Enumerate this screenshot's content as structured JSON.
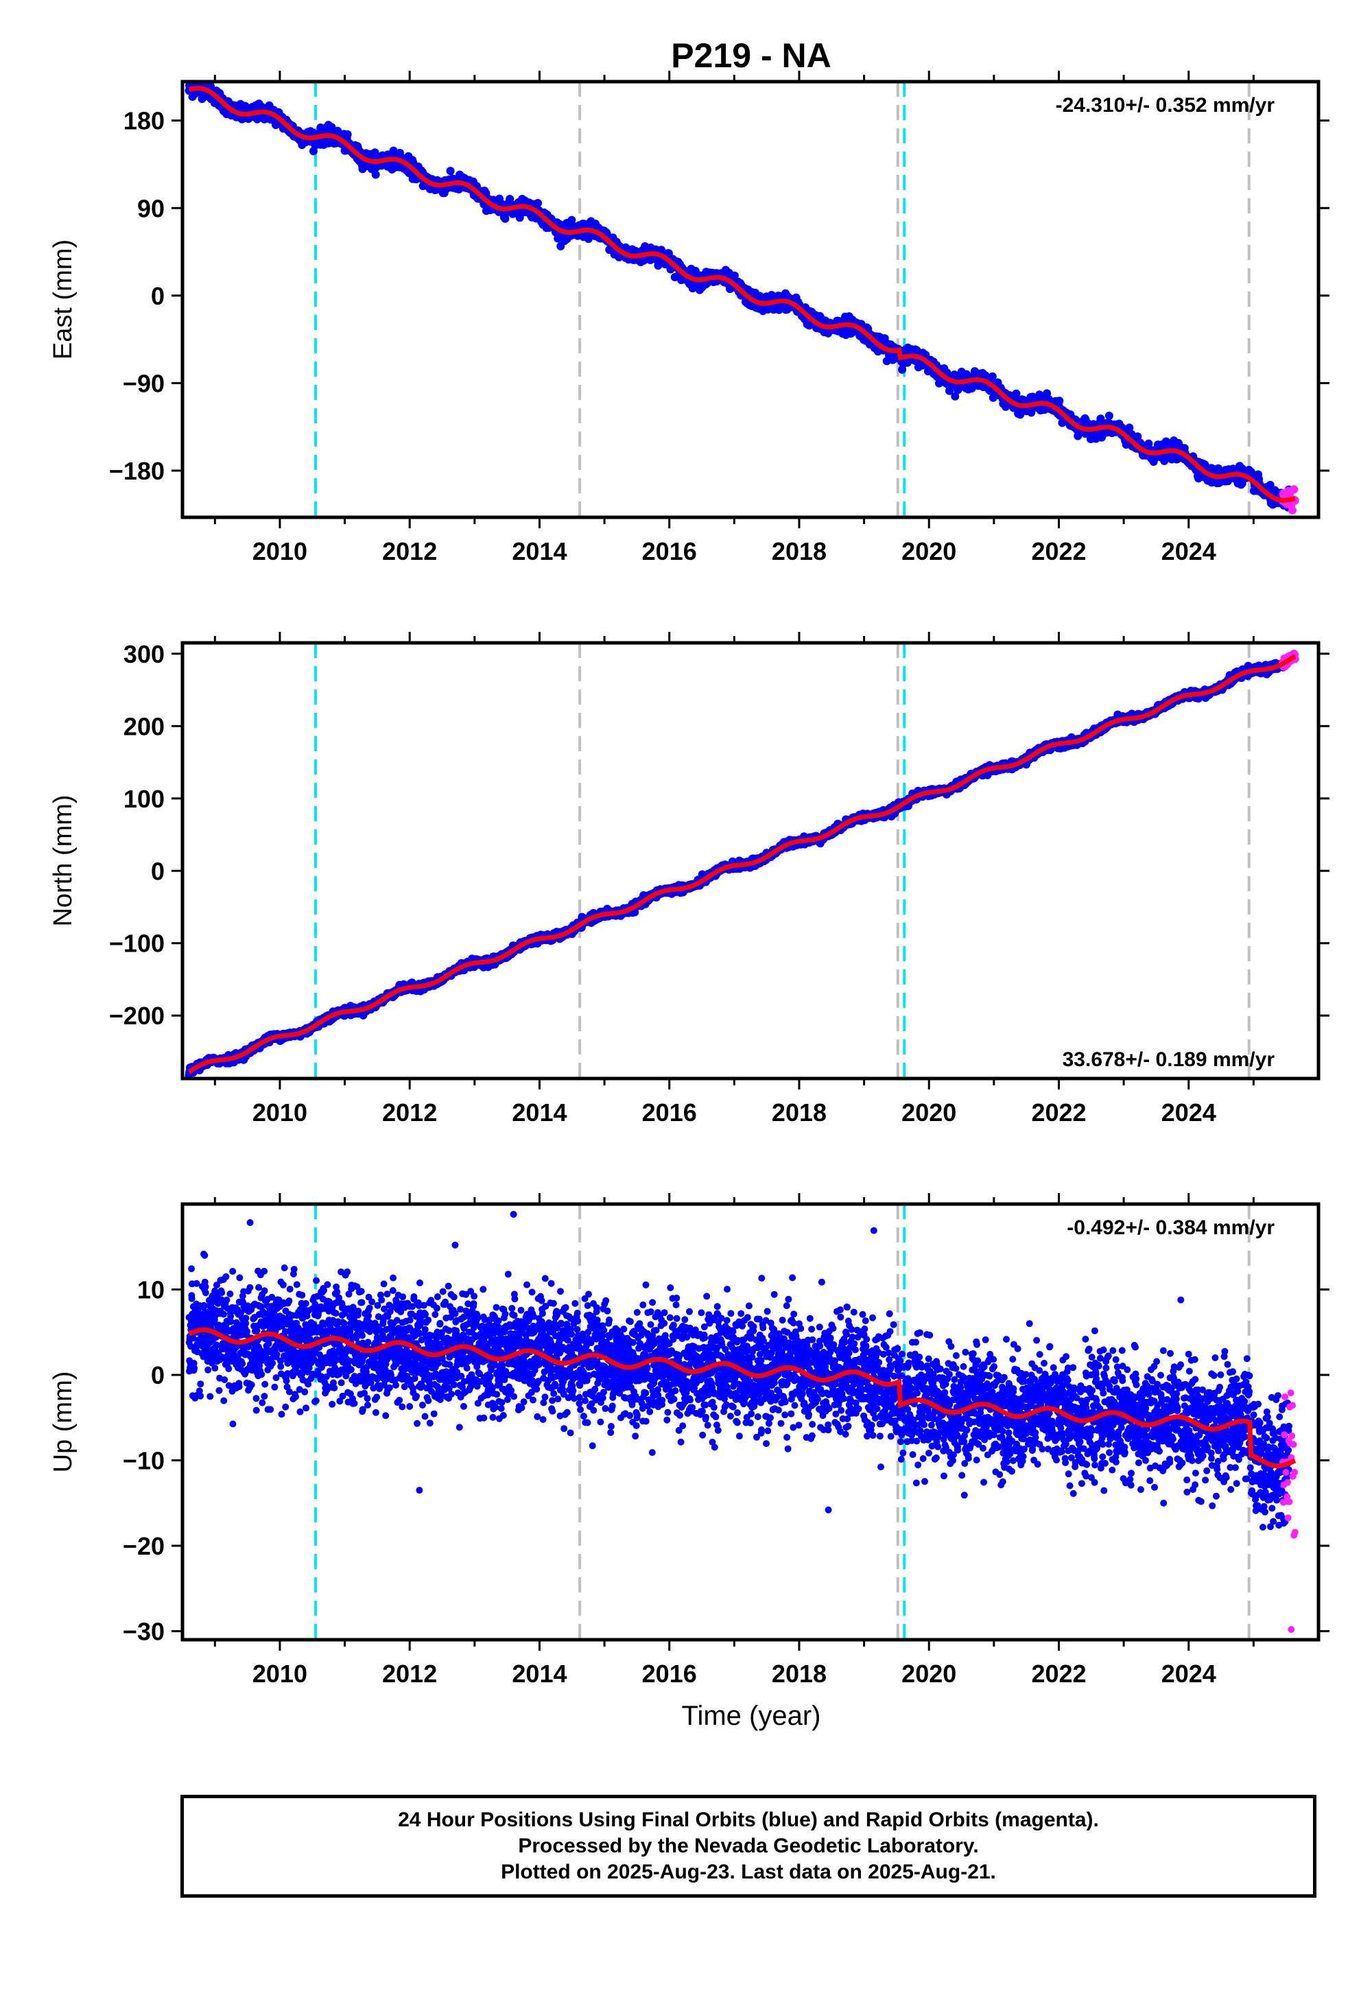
{
  "title": "P219 - NA",
  "colors": {
    "final_orbits": "#0000ff",
    "rapid_orbits": "#ff22ff",
    "model": "#ff0000",
    "equipment_change": "#00e5ee",
    "earthquake": "#c0c0c0"
  },
  "x_axis": {
    "label": "Time (year)",
    "ticks": [
      "2010",
      "2012",
      "2014",
      "2016",
      "2018",
      "2020",
      "2022",
      "2024"
    ]
  },
  "chart_data": [
    {
      "type": "scatter",
      "id": "east",
      "ylabel": "East (mm)",
      "rate": "-24.310+/- 0.352 mm/yr",
      "xlim": [
        2008.5,
        2026.0
      ],
      "ylim": [
        -228,
        220
      ],
      "yticks": [
        180,
        90,
        0,
        -90,
        -180
      ],
      "ytick_labels": [
        "180",
        "90",
        "0",
        "−90",
        "−180"
      ],
      "vlines": [
        {
          "x": 2010.55,
          "kind": "equipment_change"
        },
        {
          "x": 2014.62,
          "kind": "earthquake"
        },
        {
          "x": 2019.52,
          "kind": "earthquake"
        },
        {
          "x": 2019.62,
          "kind": "equipment_change"
        },
        {
          "x": 2024.93,
          "kind": "earthquake"
        }
      ],
      "trend": {
        "x0": 2008.6,
        "y0": 212,
        "slope": -24.31
      },
      "seasonal_amplitude": 6,
      "scatter": 4,
      "offsets": [
        {
          "x": 2019.55,
          "dy": -8
        }
      ],
      "x_range": [
        2008.6,
        2025.55
      ],
      "rapid_range": [
        2025.45,
        2025.64
      ]
    },
    {
      "type": "scatter",
      "id": "north",
      "ylabel": "North (mm)",
      "rate": "33.678+/- 0.189 mm/yr",
      "xlim": [
        2008.5,
        2026.0
      ],
      "ylim": [
        -287,
        315
      ],
      "yticks": [
        300,
        200,
        100,
        0,
        -100,
        -200
      ],
      "ytick_labels": [
        "300",
        "200",
        "100",
        "0",
        "−100",
        "−200"
      ],
      "vlines": [
        {
          "x": 2010.55,
          "kind": "equipment_change"
        },
        {
          "x": 2014.62,
          "kind": "earthquake"
        },
        {
          "x": 2019.52,
          "kind": "earthquake"
        },
        {
          "x": 2019.62,
          "kind": "equipment_change"
        },
        {
          "x": 2024.93,
          "kind": "earthquake"
        }
      ],
      "trend": {
        "x0": 2008.6,
        "y0": -278,
        "slope": 33.678
      },
      "seasonal_amplitude": 4,
      "scatter": 2.5,
      "offsets": [],
      "x_range": [
        2008.6,
        2025.55
      ],
      "rapid_range": [
        2025.45,
        2025.64
      ]
    },
    {
      "type": "scatter",
      "id": "up",
      "ylabel": "Up (mm)",
      "rate": "-0.492+/- 0.384 mm/yr",
      "xlim": [
        2008.5,
        2026.0
      ],
      "ylim": [
        -31,
        20
      ],
      "yticks": [
        10,
        0,
        -10,
        -20,
        -30
      ],
      "ytick_labels": [
        "10",
        "0",
        "−10",
        "−20",
        "−30"
      ],
      "vlines": [
        {
          "x": 2010.55,
          "kind": "equipment_change"
        },
        {
          "x": 2014.62,
          "kind": "earthquake"
        },
        {
          "x": 2019.52,
          "kind": "earthquake"
        },
        {
          "x": 2019.62,
          "kind": "equipment_change"
        },
        {
          "x": 2024.93,
          "kind": "earthquake"
        }
      ],
      "trend": {
        "x0": 2008.6,
        "y0": 4.8,
        "slope": -0.492
      },
      "seasonal_amplitude": 0.6,
      "scatter": 3.2,
      "offsets": [
        {
          "x": 2019.55,
          "dy": -2.8
        },
        {
          "x": 2024.95,
          "dy": -3.8
        }
      ],
      "x_range": [
        2008.6,
        2025.55
      ],
      "rapid_range": [
        2025.45,
        2025.64
      ],
      "outliers": [
        [
          2013.6,
          18.8
        ],
        [
          2019.15,
          16.9
        ],
        [
          2012.7,
          15.2
        ],
        [
          2012.15,
          -13.5
        ],
        [
          2018.45,
          -15.8
        ],
        [
          2025.58,
          -29.8
        ]
      ]
    }
  ],
  "caption": {
    "line1": "24 Hour Positions Using Final Orbits (blue) and Rapid Orbits (magenta).",
    "line2": "Processed by the Nevada Geodetic Laboratory.",
    "line3": "Plotted on 2025-Aug-23. Last data on 2025-Aug-21."
  }
}
